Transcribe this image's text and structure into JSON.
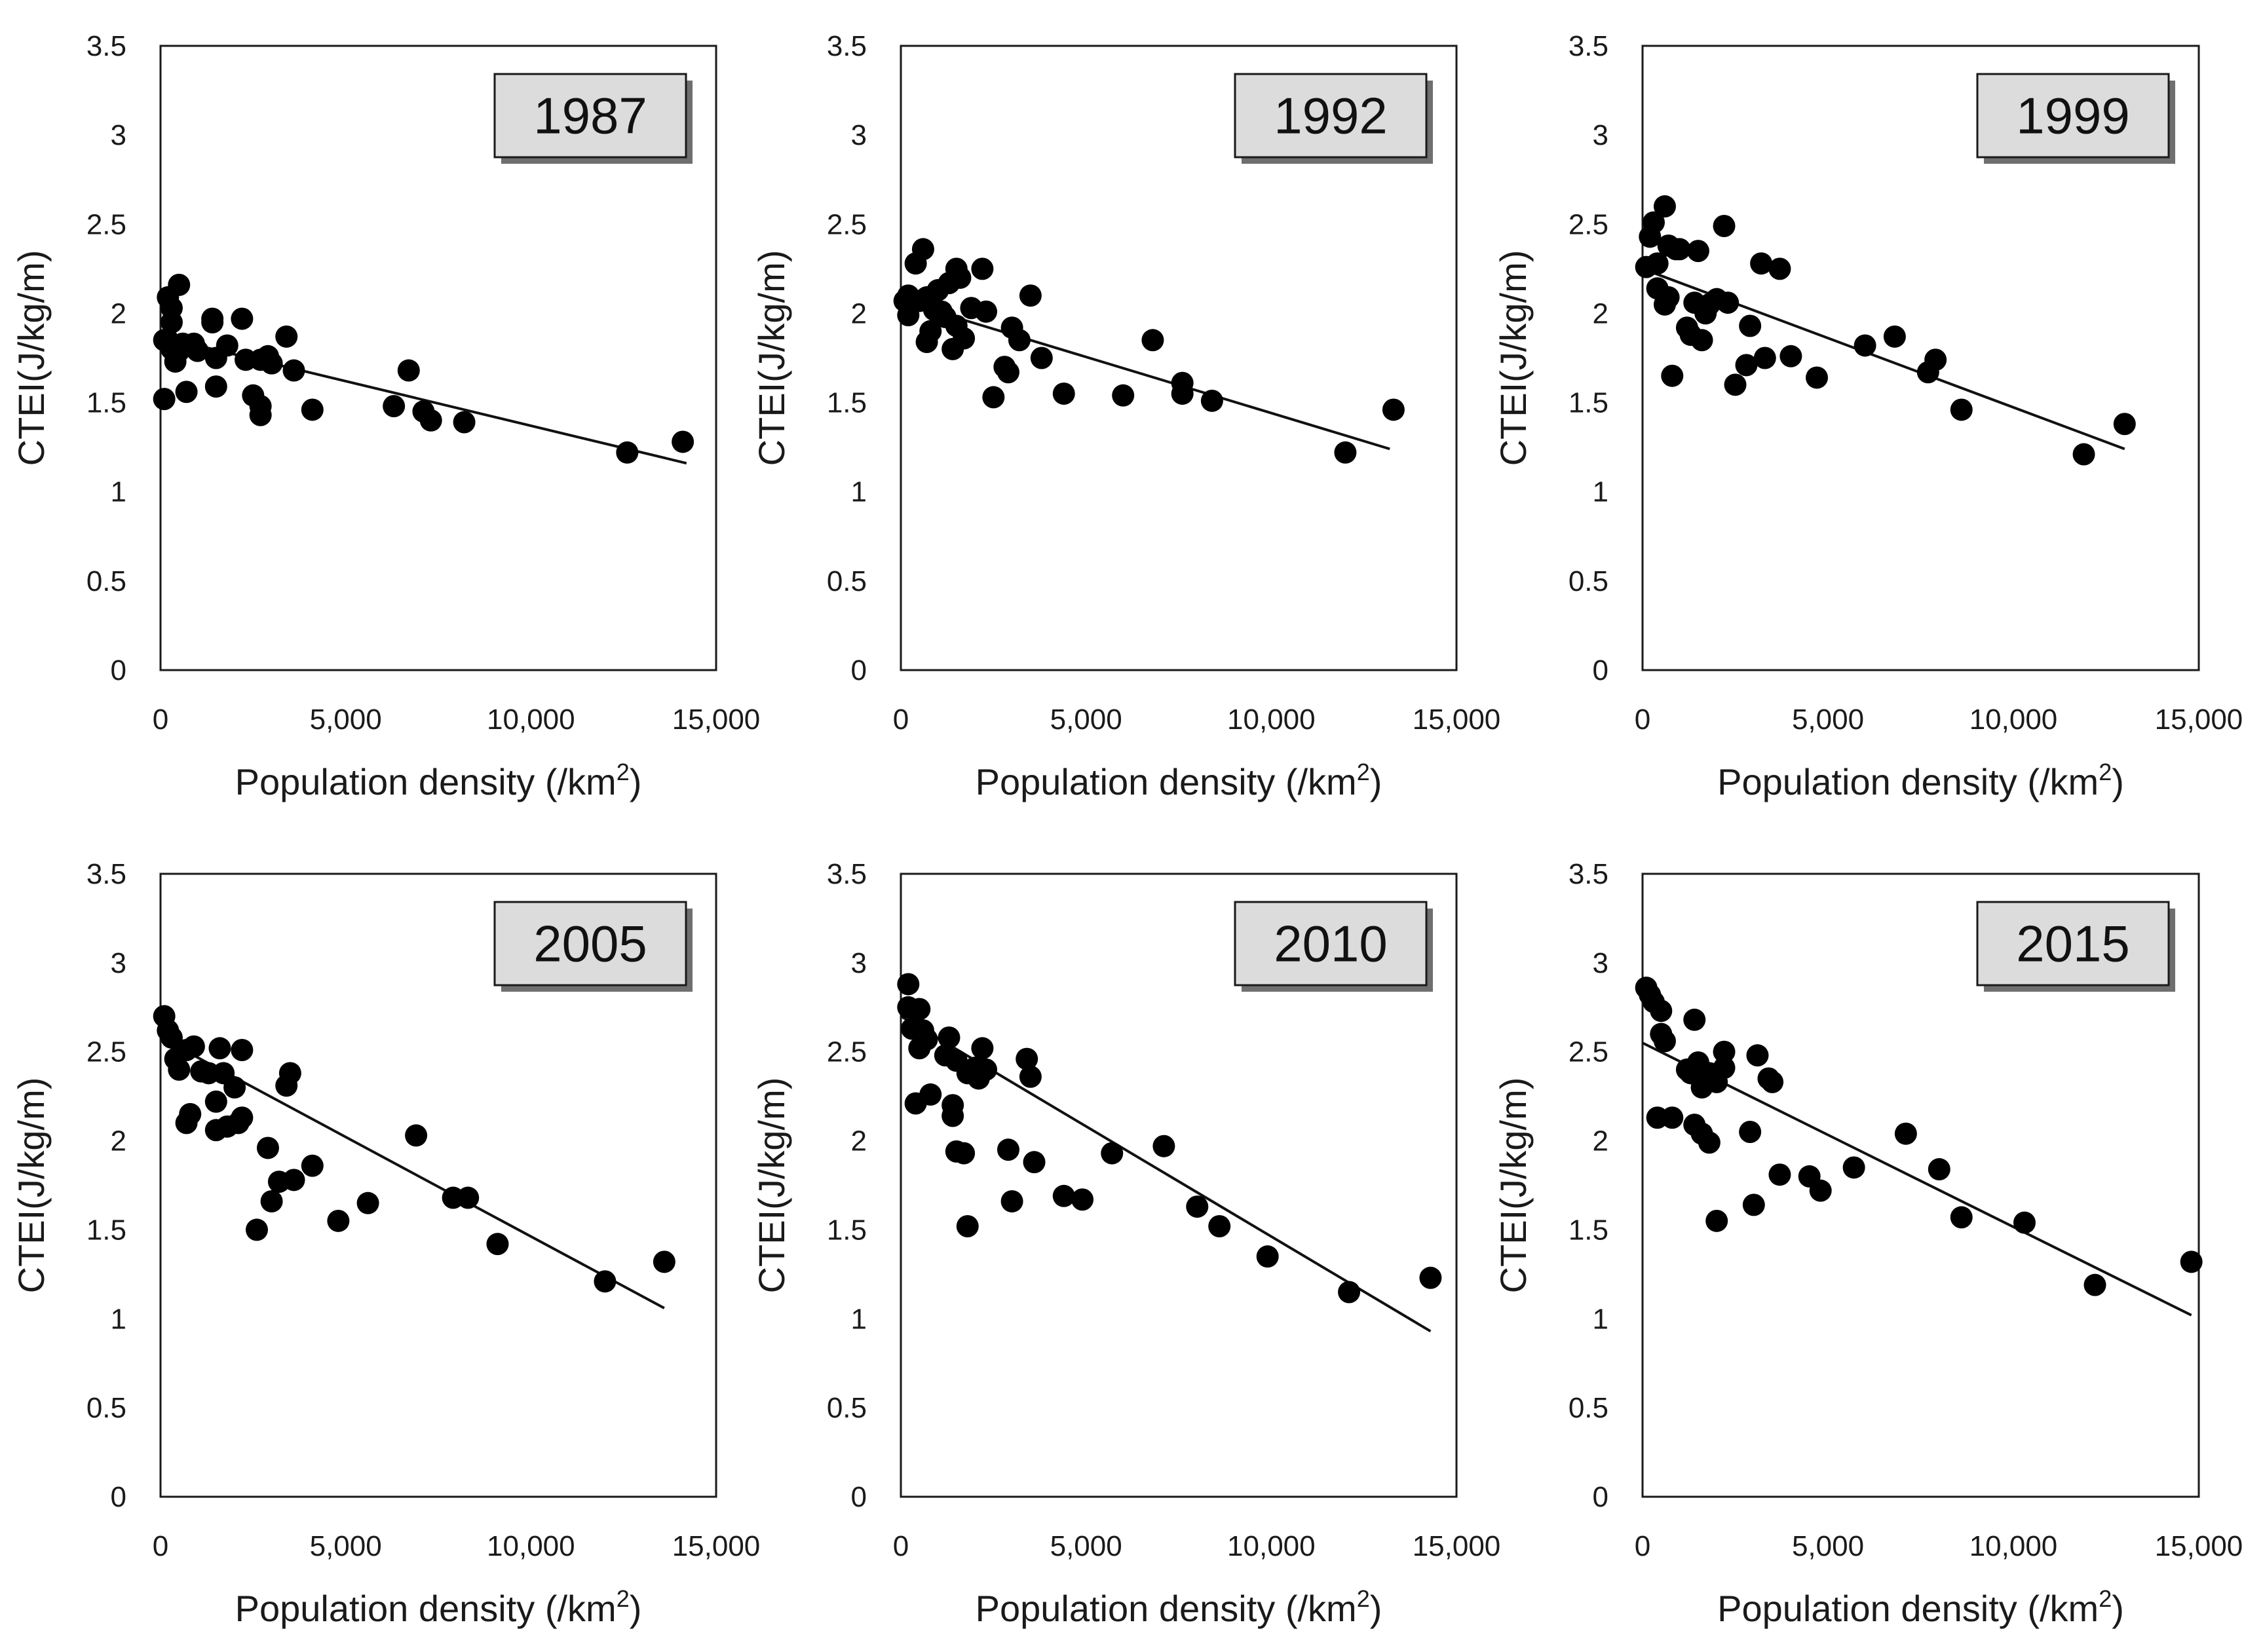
{
  "chart_data": [
    {
      "type": "scatter",
      "title": "1987",
      "xlabel": "Population density (/km2)",
      "xlabel_main": "Population density (/km",
      "xlabel_sup": "2",
      "xlabel_end": ")",
      "ylabel": "CTEI(J/kg/m)",
      "xlim": [
        0,
        15000
      ],
      "ylim": [
        0,
        3.5
      ],
      "xticks": [
        "0",
        "5,000",
        "10,000",
        "15,000"
      ],
      "yticks": [
        "0",
        "0.5",
        "1",
        "1.5",
        "2",
        "2.5",
        "3",
        "3.5"
      ],
      "trendline": {
        "x": [
          0,
          14200
        ],
        "y": [
          1.87,
          1.16
        ]
      },
      "x": [
        100,
        100,
        200,
        200,
        300,
        300,
        300,
        400,
        500,
        500,
        600,
        700,
        900,
        1000,
        1400,
        1400,
        1500,
        1500,
        1800,
        2200,
        2300,
        2500,
        2700,
        2700,
        2700,
        2900,
        3000,
        3400,
        3600,
        4100,
        6300,
        6700,
        7100,
        7300,
        8200,
        12600,
        14100
      ],
      "y": [
        1.52,
        1.85,
        2.09,
        1.85,
        2.03,
        1.95,
        1.8,
        1.73,
        1.79,
        2.16,
        1.83,
        1.56,
        1.83,
        1.79,
        1.97,
        1.95,
        1.75,
        1.59,
        1.82,
        1.97,
        1.74,
        1.54,
        1.48,
        1.43,
        1.74,
        1.76,
        1.72,
        1.87,
        1.68,
        1.46,
        1.48,
        1.68,
        1.45,
        1.4,
        1.39,
        1.22,
        1.28
      ]
    },
    {
      "type": "scatter",
      "title": "1992",
      "xlabel": "Population density (/km2)",
      "xlabel_main": "Population density (/km",
      "xlabel_sup": "2",
      "xlabel_end": ")",
      "ylabel": "CTEI(J/kg/m)",
      "xlim": [
        0,
        15000
      ],
      "ylim": [
        0,
        3.5
      ],
      "xticks": [
        "0",
        "5,000",
        "10,000",
        "15,000"
      ],
      "yticks": [
        "0",
        "0.5",
        "1",
        "1.5",
        "2",
        "2.5",
        "3",
        "3.5"
      ],
      "trendline": {
        "x": [
          0,
          13200
        ],
        "y": [
          2.07,
          1.24
        ]
      },
      "x": [
        100,
        200,
        200,
        400,
        500,
        600,
        700,
        700,
        800,
        900,
        1000,
        1100,
        1200,
        1300,
        1400,
        1500,
        1500,
        1600,
        1700,
        1900,
        2200,
        2300,
        2500,
        2800,
        2900,
        3000,
        3200,
        3500,
        3800,
        4400,
        6000,
        6800,
        7600,
        7600,
        8400,
        12000,
        13300
      ],
      "y": [
        2.07,
        1.99,
        2.1,
        2.28,
        2.07,
        2.36,
        1.84,
        2.09,
        1.9,
        2.02,
        2.13,
        2.01,
        1.98,
        2.17,
        1.8,
        2.25,
        1.93,
        2.2,
        1.86,
        2.03,
        2.25,
        2.01,
        1.53,
        1.7,
        1.67,
        1.92,
        1.85,
        2.1,
        1.75,
        1.55,
        1.54,
        1.85,
        1.61,
        1.55,
        1.51,
        1.22,
        1.46
      ]
    },
    {
      "type": "scatter",
      "title": "1999",
      "xlabel": "Population density (/km2)",
      "xlabel_main": "Population density (/km",
      "xlabel_sup": "2",
      "xlabel_end": ")",
      "ylabel": "CTEI(J/kg/m)",
      "xlim": [
        0,
        15000
      ],
      "ylim": [
        0,
        3.5
      ],
      "xticks": [
        "0",
        "5,000",
        "10,000",
        "15,000"
      ],
      "yticks": [
        "0",
        "0.5",
        "1",
        "1.5",
        "2",
        "2.5",
        "3",
        "3.5"
      ],
      "trendline": {
        "x": [
          0,
          13000
        ],
        "y": [
          2.25,
          1.24
        ]
      },
      "x": [
        100,
        200,
        300,
        400,
        400,
        600,
        600,
        700,
        700,
        800,
        900,
        1000,
        1200,
        1300,
        1400,
        1500,
        1600,
        1700,
        1800,
        2000,
        2200,
        2300,
        2500,
        2800,
        2900,
        3200,
        3300,
        3700,
        4000,
        4700,
        6000,
        6800,
        7700,
        7900,
        8600,
        11900,
        13000
      ],
      "y": [
        2.26,
        2.43,
        2.51,
        2.14,
        2.28,
        2.6,
        2.05,
        2.38,
        2.09,
        1.65,
        2.36,
        2.36,
        1.92,
        1.88,
        2.06,
        2.35,
        1.85,
        2.0,
        2.05,
        2.08,
        2.49,
        2.06,
        1.6,
        1.71,
        1.93,
        2.28,
        1.75,
        2.25,
        1.76,
        1.64,
        1.82,
        1.87,
        1.67,
        1.74,
        1.46,
        1.21,
        1.38
      ]
    },
    {
      "type": "scatter",
      "title": "2005",
      "xlabel": "Population density (/km2)",
      "xlabel_main": "Population density (/km",
      "xlabel_sup": "2",
      "xlabel_end": ")",
      "ylabel": "CTEI(J/kg/m)",
      "xlim": [
        0,
        15000
      ],
      "ylim": [
        0,
        3.5
      ],
      "xticks": [
        "0",
        "5,000",
        "10,000",
        "15,000"
      ],
      "yticks": [
        "0",
        "0.5",
        "1",
        "1.5",
        "2",
        "2.5",
        "3",
        "3.5"
      ],
      "trendline": {
        "x": [
          0,
          13600
        ],
        "y": [
          2.58,
          1.06
        ]
      },
      "x": [
        100,
        200,
        300,
        400,
        500,
        700,
        700,
        800,
        900,
        1100,
        1300,
        1500,
        1500,
        1600,
        1700,
        1800,
        2000,
        2100,
        2200,
        2200,
        2600,
        2900,
        3000,
        3200,
        3400,
        3500,
        3600,
        4100,
        4800,
        5600,
        6900,
        7900,
        8300,
        9100,
        12000,
        13600
      ],
      "y": [
        2.7,
        2.62,
        2.58,
        2.46,
        2.4,
        2.1,
        2.51,
        2.15,
        2.53,
        2.39,
        2.38,
        2.22,
        2.06,
        2.52,
        2.38,
        2.08,
        2.3,
        2.1,
        2.13,
        2.51,
        1.5,
        1.96,
        1.66,
        1.77,
        2.31,
        2.38,
        1.78,
        1.86,
        1.55,
        1.65,
        2.03,
        1.68,
        1.68,
        1.42,
        1.21,
        1.32
      ]
    },
    {
      "type": "scatter",
      "title": "2010",
      "xlabel": "Population density (/km2)",
      "xlabel_main": "Population density (/km",
      "xlabel_sup": "2",
      "xlabel_end": ")",
      "ylabel": "CTEI(J/kg/m)",
      "xlim": [
        0,
        15000
      ],
      "ylim": [
        0,
        3.5
      ],
      "xticks": [
        "0",
        "5,000",
        "10,000",
        "15,000"
      ],
      "yticks": [
        "0",
        "0.5",
        "1",
        "1.5",
        "2",
        "2.5",
        "3",
        "3.5"
      ],
      "trendline": {
        "x": [
          0,
          14300
        ],
        "y": [
          2.7,
          0.93
        ]
      },
      "x": [
        200,
        200,
        300,
        400,
        500,
        500,
        600,
        700,
        800,
        1200,
        1300,
        1400,
        1400,
        1500,
        1500,
        1700,
        1800,
        1800,
        2000,
        2100,
        2200,
        2300,
        2900,
        3000,
        3400,
        3500,
        3600,
        4400,
        4900,
        5700,
        7100,
        8000,
        8600,
        9900,
        12100,
        14300
      ],
      "y": [
        2.88,
        2.75,
        2.63,
        2.21,
        2.74,
        2.52,
        2.62,
        2.57,
        2.26,
        2.48,
        2.58,
        2.2,
        2.14,
        1.94,
        2.45,
        1.93,
        2.38,
        1.52,
        2.41,
        2.35,
        2.52,
        2.4,
        1.95,
        1.66,
        2.46,
        2.36,
        1.88,
        1.69,
        1.67,
        1.93,
        1.97,
        1.63,
        1.52,
        1.35,
        1.15,
        1.23
      ]
    },
    {
      "type": "scatter",
      "title": "2015",
      "xlabel": "Population density (/km2)",
      "xlabel_main": "Population density (/km",
      "xlabel_sup": "2",
      "xlabel_end": ")",
      "ylabel": "CTEI(J/kg/m)",
      "xlim": [
        0,
        15000
      ],
      "ylim": [
        0,
        3.5
      ],
      "xticks": [
        "0",
        "5,000",
        "10,000",
        "15,000"
      ],
      "yticks": [
        "0",
        "0.5",
        "1",
        "1.5",
        "2",
        "2.5",
        "3",
        "3.5"
      ],
      "trendline": {
        "x": [
          0,
          14800
        ],
        "y": [
          2.55,
          1.02
        ]
      },
      "x": [
        100,
        200,
        300,
        400,
        500,
        500,
        600,
        800,
        1200,
        1300,
        1400,
        1400,
        1500,
        1600,
        1600,
        1800,
        1800,
        2000,
        2000,
        2200,
        2200,
        2900,
        3000,
        3100,
        3400,
        3500,
        3700,
        4500,
        4800,
        5700,
        7100,
        8000,
        8600,
        10300,
        12200,
        14800
      ],
      "y": [
        2.86,
        2.82,
        2.78,
        2.13,
        2.73,
        2.6,
        2.56,
        2.13,
        2.4,
        2.38,
        2.68,
        2.09,
        2.44,
        2.3,
        2.04,
        2.38,
        1.99,
        1.55,
        2.33,
        2.41,
        2.5,
        2.05,
        1.64,
        2.48,
        2.35,
        2.33,
        1.81,
        1.8,
        1.72,
        1.85,
        2.04,
        1.84,
        1.57,
        1.54,
        1.19,
        1.32
      ]
    }
  ]
}
